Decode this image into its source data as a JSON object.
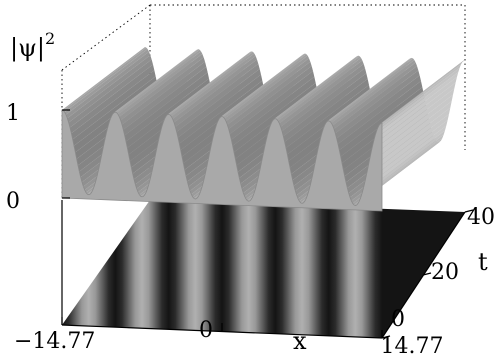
{
  "chart_data": {
    "type": "surface",
    "axes": {
      "x": {
        "label": "x",
        "ticks": [
          "−14.77",
          "0",
          "14.77"
        ],
        "range": [
          -14.77,
          14.77
        ]
      },
      "t": {
        "label": "t",
        "ticks": [
          "0",
          "20",
          "40"
        ],
        "range": [
          0,
          40
        ]
      },
      "z": {
        "label": "|ψ|",
        "label_sup": "2",
        "ticks": [
          "0",
          "1"
        ],
        "range": [
          0,
          1
        ]
      }
    },
    "surface": {
      "quantity": "|ψ|^2",
      "min": 0.05,
      "max": 1.0,
      "periods_across_x": 6
    },
    "projection": {
      "kind": "density",
      "stripes": 6
    },
    "colors": {
      "surface": "#a9a9a9",
      "edge": "#8a8a8a",
      "floor_dark": "#141414",
      "floor_light": "#b0b0b0"
    },
    "grid": false
  }
}
